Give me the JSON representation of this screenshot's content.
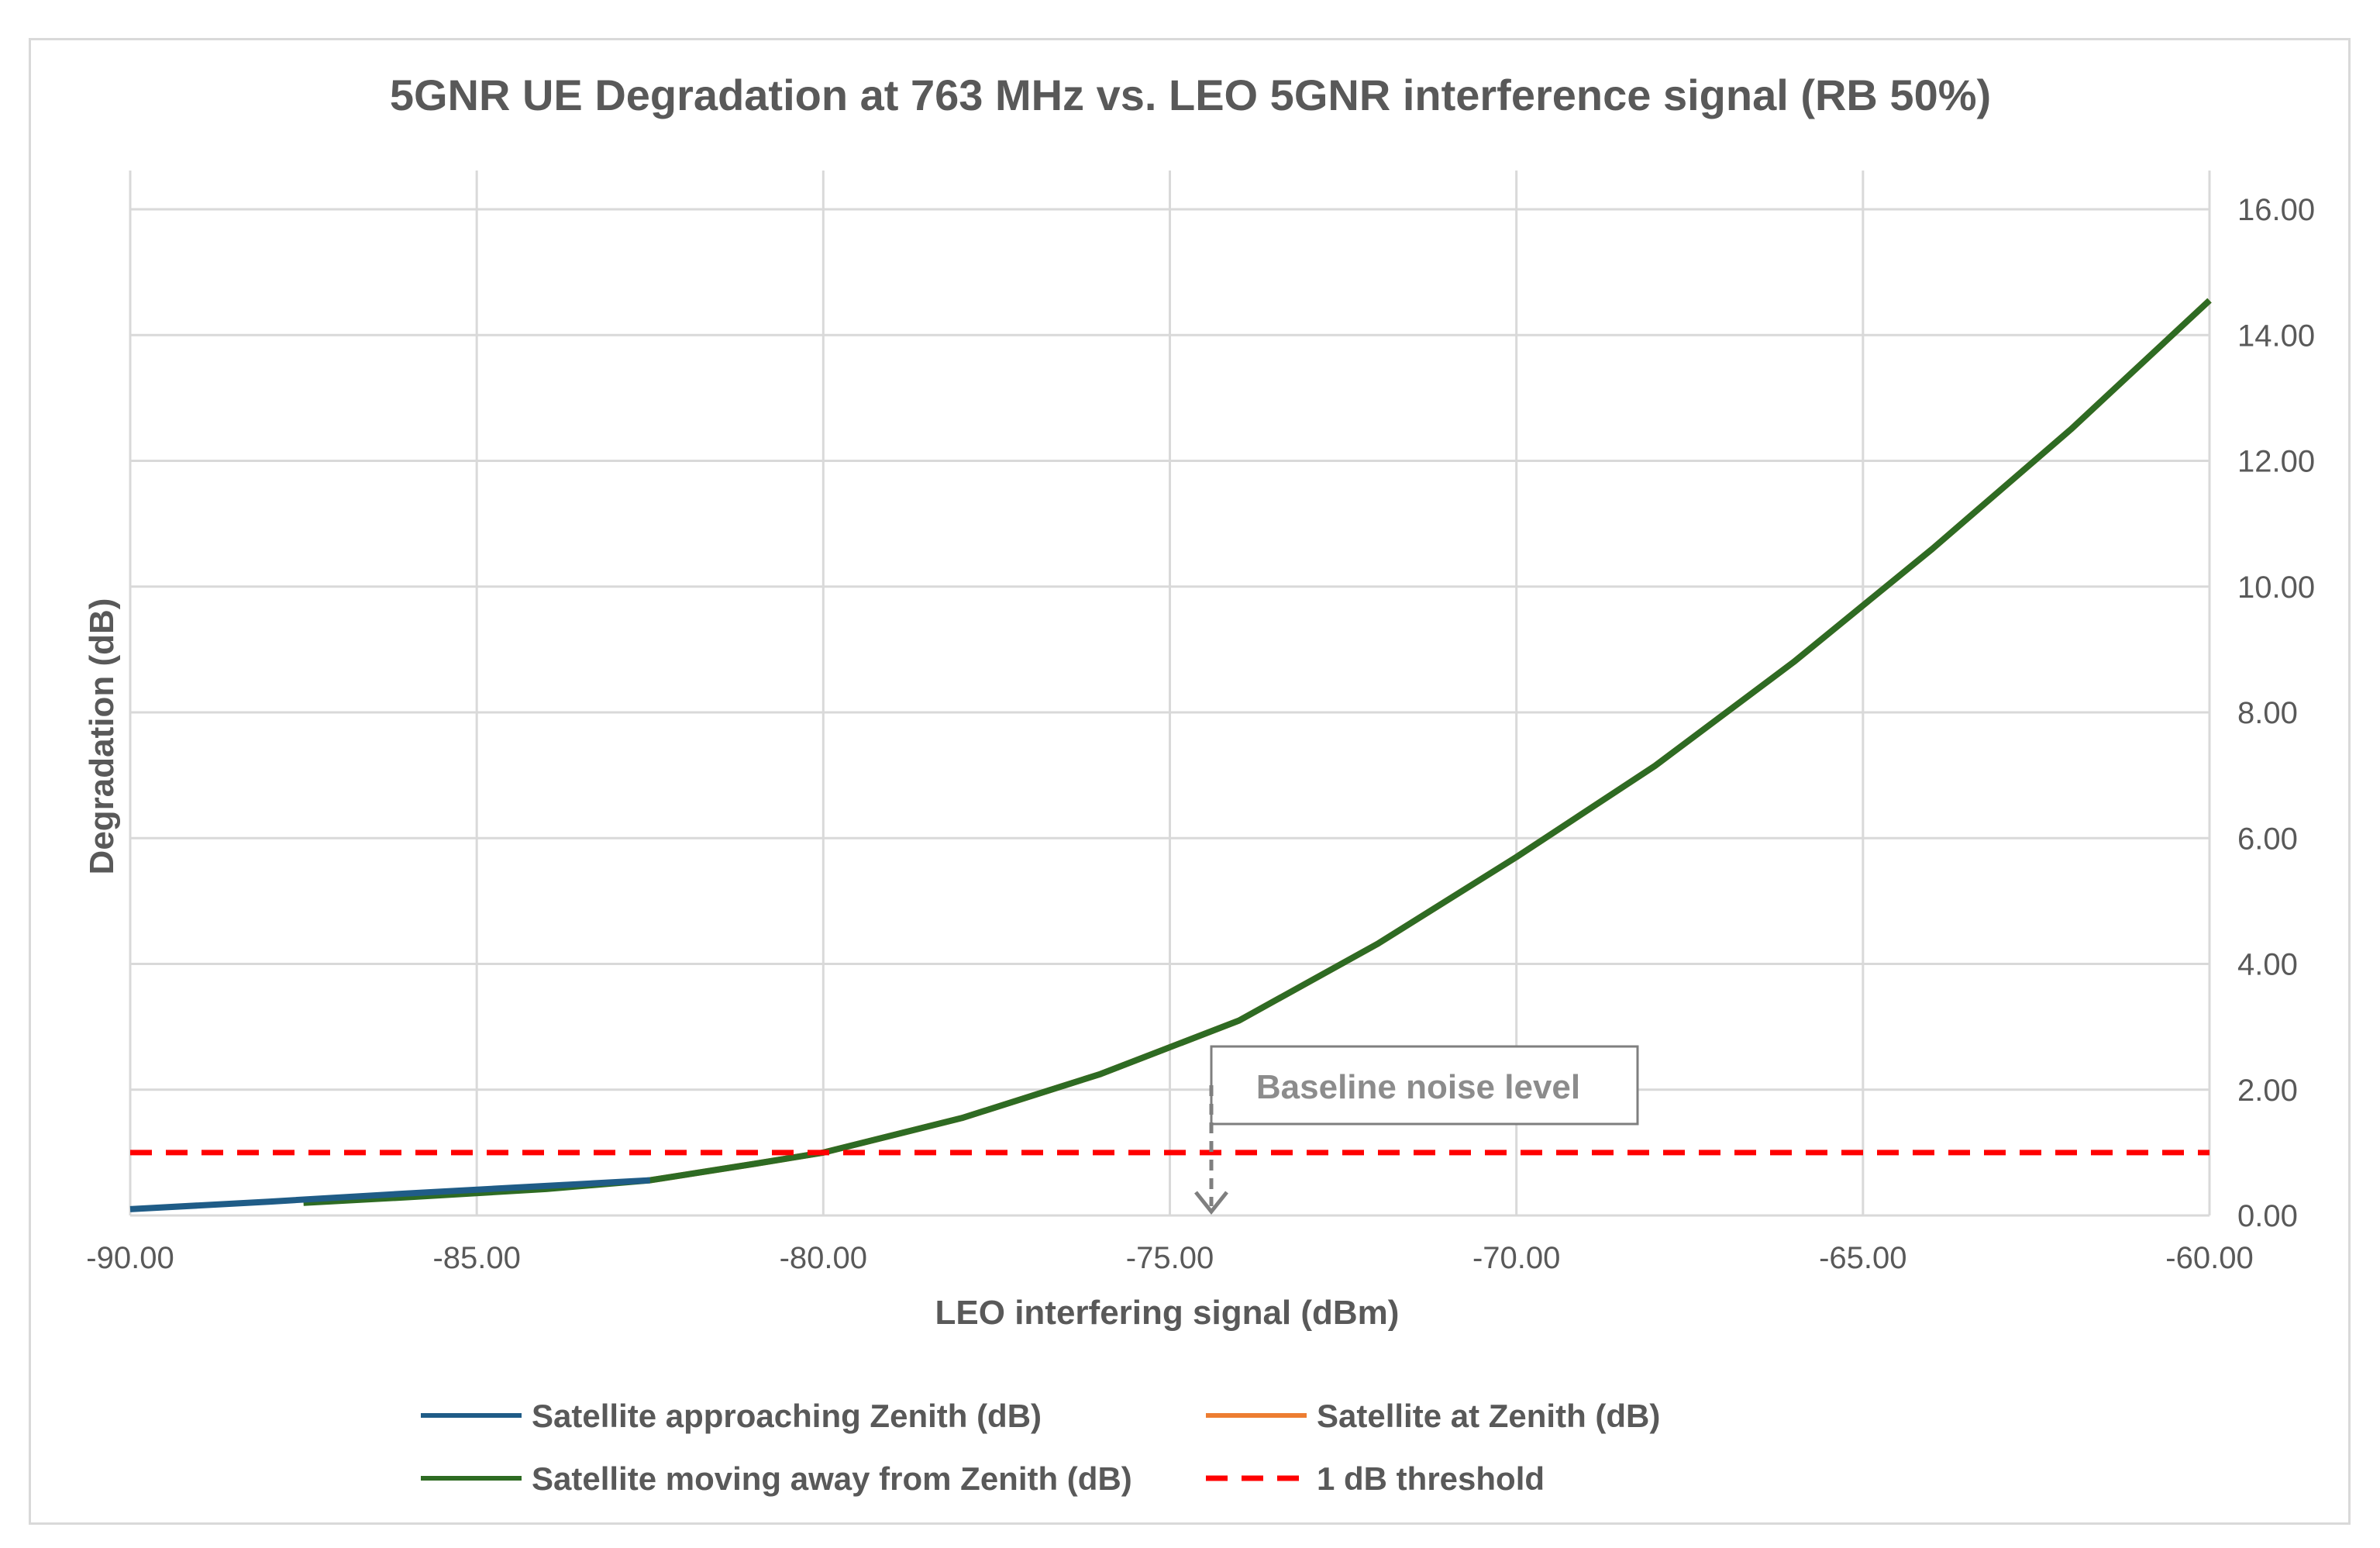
{
  "chart_data": {
    "type": "line",
    "title": "5GNR UE Degradation at 763 MHz vs. LEO 5GNR interference signal (RB 50%)",
    "xlabel": "LEO interfering signal (dBm)",
    "ylabel": "Degradation (dB)",
    "xlim": [
      -90,
      -60
    ],
    "ylim": [
      0,
      16
    ],
    "x_ticks": [
      "-90.00",
      "-85.00",
      "-80.00",
      "-75.00",
      "-70.00",
      "-65.00",
      "-60.00"
    ],
    "y_ticks": [
      "0.00",
      "2.00",
      "4.00",
      "6.00",
      "8.00",
      "10.00",
      "12.00",
      "14.00",
      "16.00"
    ],
    "y_axis_side": "right",
    "grid": true,
    "legend_position": "bottom",
    "series": [
      {
        "name": "Satellite approaching Zenith (dB)",
        "color": "#1f5c87",
        "style": "solid",
        "x": [
          -90,
          -88,
          -86,
          -84,
          -82.5
        ],
        "y": [
          0.1,
          0.22,
          0.35,
          0.47,
          0.56
        ]
      },
      {
        "name": "Satellite at Zenith (dB)",
        "color": "#ed7d31",
        "style": "solid",
        "x": [
          -82.5,
          -81,
          -80,
          -78,
          -76,
          -74,
          -72,
          -70,
          -68,
          -66,
          -64,
          -62,
          -60
        ],
        "y": [
          0.56,
          0.82,
          1.0,
          1.55,
          2.25,
          3.1,
          4.32,
          5.7,
          7.15,
          8.8,
          10.6,
          12.5,
          14.55
        ]
      },
      {
        "name": "Satellite moving away from Zenith (dB)",
        "color": "#2e6b23",
        "style": "solid",
        "x": [
          -87.5,
          -86,
          -84,
          -82.5,
          -81,
          -80,
          -78,
          -76,
          -74,
          -72,
          -70,
          -68,
          -66,
          -64,
          -62,
          -60
        ],
        "y": [
          0.2,
          0.29,
          0.42,
          0.56,
          0.82,
          1.0,
          1.55,
          2.25,
          3.1,
          4.32,
          5.7,
          7.15,
          8.8,
          10.6,
          12.5,
          14.55
        ]
      },
      {
        "name": "1 dB threshold",
        "color": "#ff0000",
        "style": "dashed",
        "x": [
          -90,
          -60
        ],
        "y": [
          1,
          1
        ]
      }
    ],
    "annotations": [
      {
        "text": "Baseline noise level",
        "x": -74.4,
        "y": 0,
        "arrow": "down"
      }
    ]
  }
}
